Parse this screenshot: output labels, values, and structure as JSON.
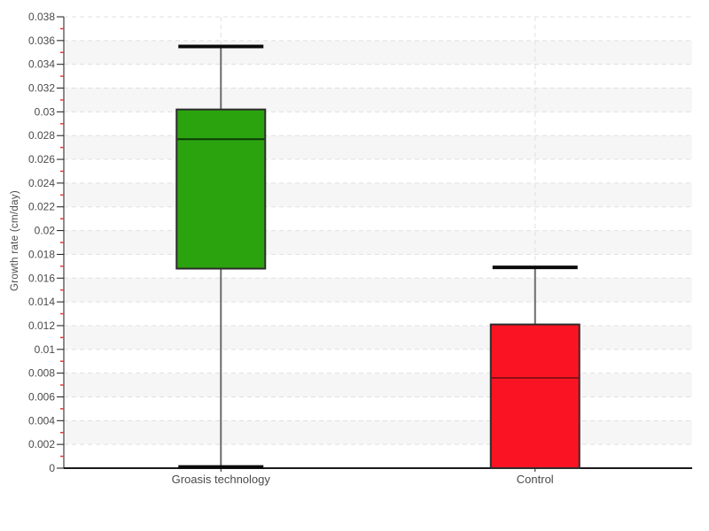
{
  "chart_data": {
    "type": "boxplot",
    "title": "",
    "ylabel": "Growth rate (cm/day)",
    "xlabel": "",
    "y_axis": {
      "min": 0,
      "max": 0.038,
      "major_step": 0.002,
      "minor_step": 0.001,
      "tick_labels": [
        "0",
        "0.002",
        "0.004",
        "0.006",
        "0.008",
        "0.01",
        "0.012",
        "0.014",
        "0.016",
        "0.018",
        "0.02",
        "0.022",
        "0.024",
        "0.026",
        "0.028",
        "0.03",
        "0.032",
        "0.034",
        "0.036",
        "0.038"
      ]
    },
    "categories": [
      "Groasis technology",
      "Control"
    ],
    "series": [
      {
        "label": "Groasis technology",
        "min": 0.0001,
        "q1": 0.0168,
        "median": 0.0277,
        "q3": 0.0302,
        "max": 0.0355,
        "fill": "#2aa30f",
        "median_color": "#0d3a05"
      },
      {
        "label": "Control",
        "min": 0,
        "q1": 0,
        "median": 0.0076,
        "q3": 0.0121,
        "max": 0.0169,
        "fill": "#fa1423",
        "median_color": "#900f16"
      }
    ],
    "style": {
      "band_color_even": "#ffffff",
      "band_color_odd": "#f6f6f6",
      "grid_color": "#e0e0e0",
      "axis_color": "#1a1a1a",
      "major_tick_color": "#1a1a1a",
      "minor_tick_color": "#e03c3c",
      "whisker_color": "#6b6b6b",
      "cap_color": "#0a0a0a",
      "box_border_color": "#2d2d2d",
      "label_color": "#4a4a4a"
    },
    "layout_hints": {
      "grid": "horizontal and vertical dashed, alternating horizontal bands",
      "legend": "none"
    }
  }
}
